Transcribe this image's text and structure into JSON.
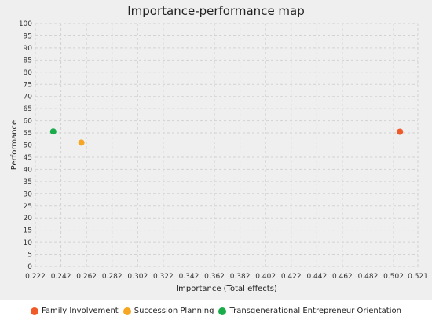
{
  "chart_data": {
    "type": "scatter",
    "title": "Importance-performance map",
    "xlabel": "Importance (Total effects)",
    "ylabel": "Performance",
    "xlim": [
      0.222,
      0.521
    ],
    "ylim": [
      0,
      100
    ],
    "x_ticks": [
      0.222,
      0.242,
      0.262,
      0.282,
      0.302,
      0.322,
      0.342,
      0.362,
      0.382,
      0.402,
      0.422,
      0.442,
      0.462,
      0.482,
      0.502,
      0.521
    ],
    "y_ticks": [
      0,
      5,
      10,
      15,
      20,
      25,
      30,
      35,
      40,
      45,
      50,
      55,
      60,
      65,
      70,
      75,
      80,
      85,
      90,
      95,
      100
    ],
    "grid": true,
    "legend_position": "bottom",
    "series": [
      {
        "name": "Family Involvement",
        "color": "#f05a28",
        "points": [
          {
            "x": 0.507,
            "y": 55.5
          }
        ]
      },
      {
        "name": "Succession Planning",
        "color": "#f5a623",
        "points": [
          {
            "x": 0.258,
            "y": 51.0
          }
        ]
      },
      {
        "name": "Transgenerational Entrepreneur Orientation",
        "color": "#1aab4b",
        "points": [
          {
            "x": 0.236,
            "y": 55.6
          }
        ]
      }
    ]
  }
}
